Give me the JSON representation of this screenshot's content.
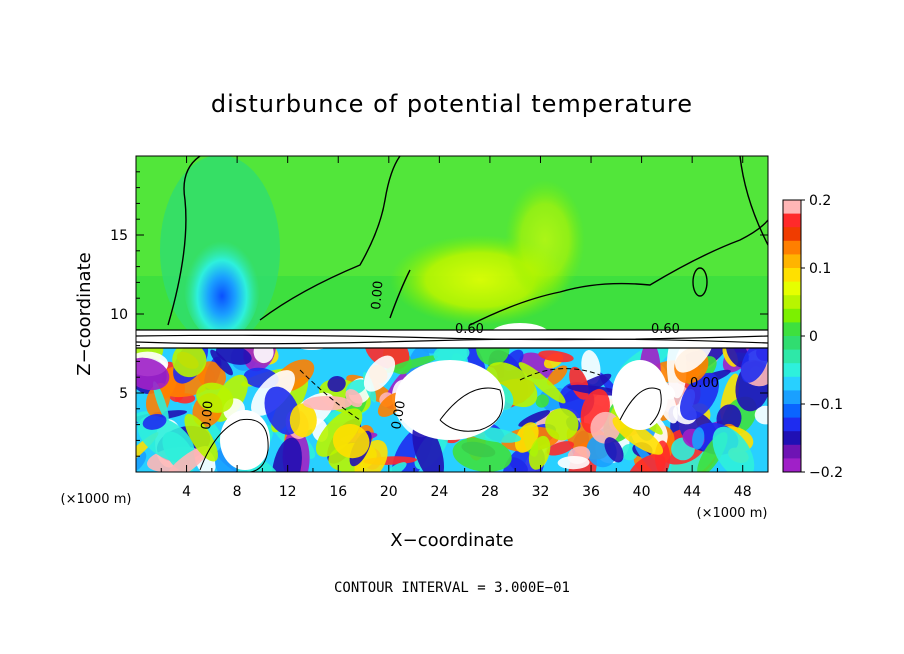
{
  "chart_data": {
    "type": "heatmap",
    "title": "disturbunce of potential temperature",
    "xlabel": "X−coordinate",
    "ylabel": "Z−coordinate",
    "x_unit": "(×1000 m)",
    "z_unit": "(×1000 m)",
    "xlim": [
      0,
      50
    ],
    "ylim": [
      0,
      20
    ],
    "x_ticks": [
      4,
      8,
      12,
      16,
      20,
      24,
      28,
      32,
      36,
      40,
      44,
      48
    ],
    "y_ticks": [
      5,
      10,
      15
    ],
    "colorbar": {
      "range": [
        -0.2,
        0.2
      ],
      "tick_labels": [
        "0.2",
        "0.1",
        "0",
        "−0.1",
        "−0.2"
      ],
      "tick_values": [
        0.2,
        0.1,
        0,
        -0.1,
        -0.2
      ],
      "colors": [
        "#ffb6b6",
        "#ff2a2a",
        "#f03c00",
        "#ff7f00",
        "#ffb400",
        "#ffe000",
        "#e6ff00",
        "#b8f500",
        "#7cf000",
        "#3ee03e",
        "#30dd70",
        "#2ee8a8",
        "#2ef0dc",
        "#28d0ff",
        "#1aa0ff",
        "#0a64ff",
        "#1e2cf0",
        "#2010b4",
        "#6e14b4",
        "#a020c8"
      ]
    },
    "contour_labels": [
      "0.60",
      "0.60",
      "0.00",
      "0.00",
      "0.00",
      "0.00"
    ],
    "annotation": "CONTOUR INTERVAL = 3.000E−01"
  }
}
